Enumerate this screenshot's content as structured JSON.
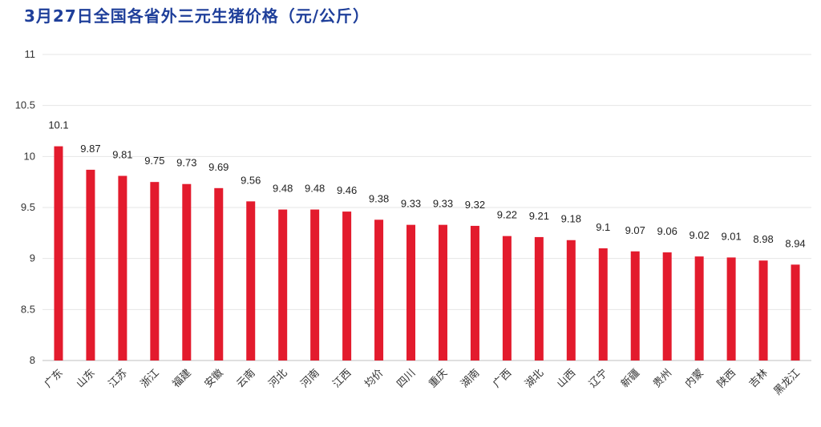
{
  "chart_data": {
    "type": "bar",
    "title": "3月27日全国各省外三元生猪价格（元/公斤）",
    "xlabel": "",
    "ylabel": "",
    "ylim": [
      8,
      11
    ],
    "yticks": [
      "8",
      "8.5",
      "9",
      "9.5",
      "10",
      "10.5",
      "11"
    ],
    "grid": true,
    "bar_color": "#e31b2d",
    "categories": [
      "广东",
      "山东",
      "江苏",
      "浙江",
      "福建",
      "安徽",
      "云南",
      "河北",
      "河南",
      "江西",
      "均价",
      "四川",
      "重庆",
      "湖南",
      "广西",
      "湖北",
      "山西",
      "辽宁",
      "新疆",
      "贵州",
      "内蒙",
      "陕西",
      "吉林",
      "黑龙江"
    ],
    "values": [
      10.1,
      9.87,
      9.81,
      9.75,
      9.73,
      9.69,
      9.56,
      9.48,
      9.48,
      9.46,
      9.38,
      9.33,
      9.33,
      9.32,
      9.22,
      9.21,
      9.18,
      9.1,
      9.07,
      9.06,
      9.02,
      9.01,
      8.98,
      8.94
    ],
    "value_labels": [
      "10.1",
      "9.87",
      "9.81",
      "9.75",
      "9.73",
      "9.69",
      "9.56",
      "9.48",
      "9.48",
      "9.46",
      "9.38",
      "9.33",
      "9.33",
      "9.32",
      "9.22",
      "9.21",
      "9.18",
      "9.1",
      "9.07",
      "9.06",
      "9.02",
      "9.01",
      "8.98",
      "8.94"
    ]
  }
}
